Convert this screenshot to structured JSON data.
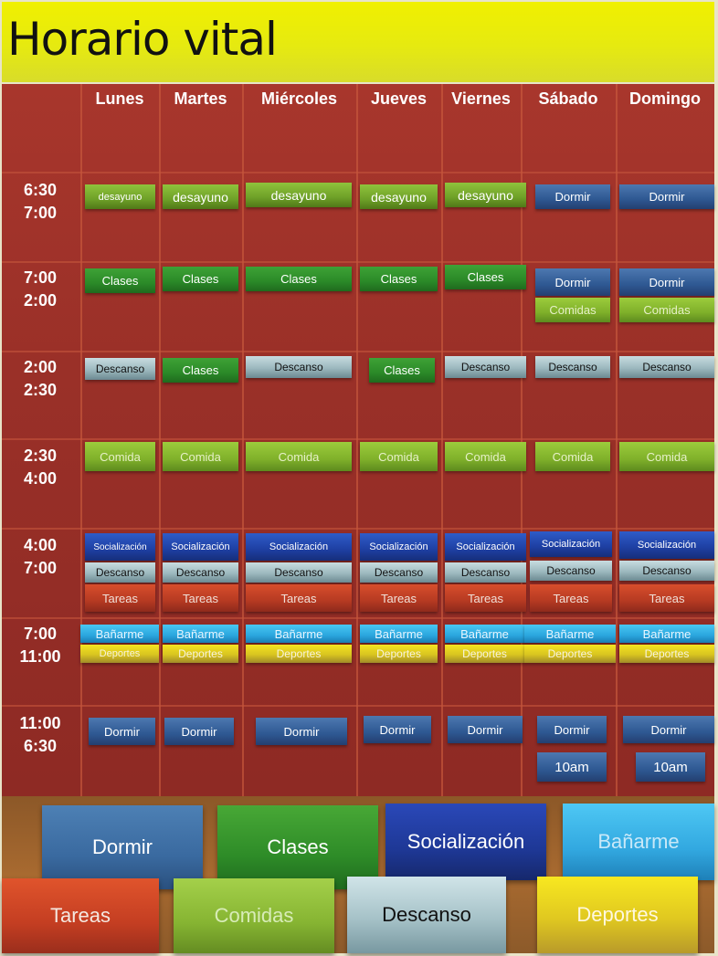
{
  "title": "Horario vital",
  "days": [
    "Lunes",
    "Martes",
    "Miércoles",
    "Jueves",
    "Viernes",
    "Sábado",
    "Domingo"
  ],
  "times": [
    {
      "start": "6:30",
      "end": "7:00"
    },
    {
      "start": "7:00",
      "end": "2:00"
    },
    {
      "start": "2:00",
      "end": "2:30"
    },
    {
      "start": "2:30",
      "end": "4:00"
    },
    {
      "start": "4:00",
      "end": "7:00"
    },
    {
      "start": "7:00",
      "end": "11:00"
    },
    {
      "start": "11:00",
      "end": "6:30"
    }
  ],
  "activities": {
    "desayuno": "desayuno",
    "dormir": "Dormir",
    "clases": "Clases",
    "comidas": "Comidas",
    "descanso": "Descanso",
    "comida": "Comida",
    "socializacion": "Socialización",
    "tareas": "Tareas",
    "banarme": "Bañarme",
    "deportes": "Deportes",
    "diez": "10am"
  },
  "legend": {
    "dormir": "Dormir",
    "clases": "Clases",
    "socializacion": "Socialización",
    "banarme": "Bañarme",
    "tareas": "Tareas",
    "comidas": "Comidas",
    "descanso": "Descanso",
    "deportes": "Deportes"
  },
  "colors": {
    "title_bg": "#f0f000",
    "board_bg": "#9a3028",
    "dormir": "#2e5892",
    "clases": "#2b8a28",
    "socializacion": "#1e3fa2",
    "banarme": "#2aa6de",
    "tareas": "#b63a22",
    "comidas": "#7fb02a",
    "descanso": "#9cb8be",
    "deportes": "#d8c420"
  }
}
